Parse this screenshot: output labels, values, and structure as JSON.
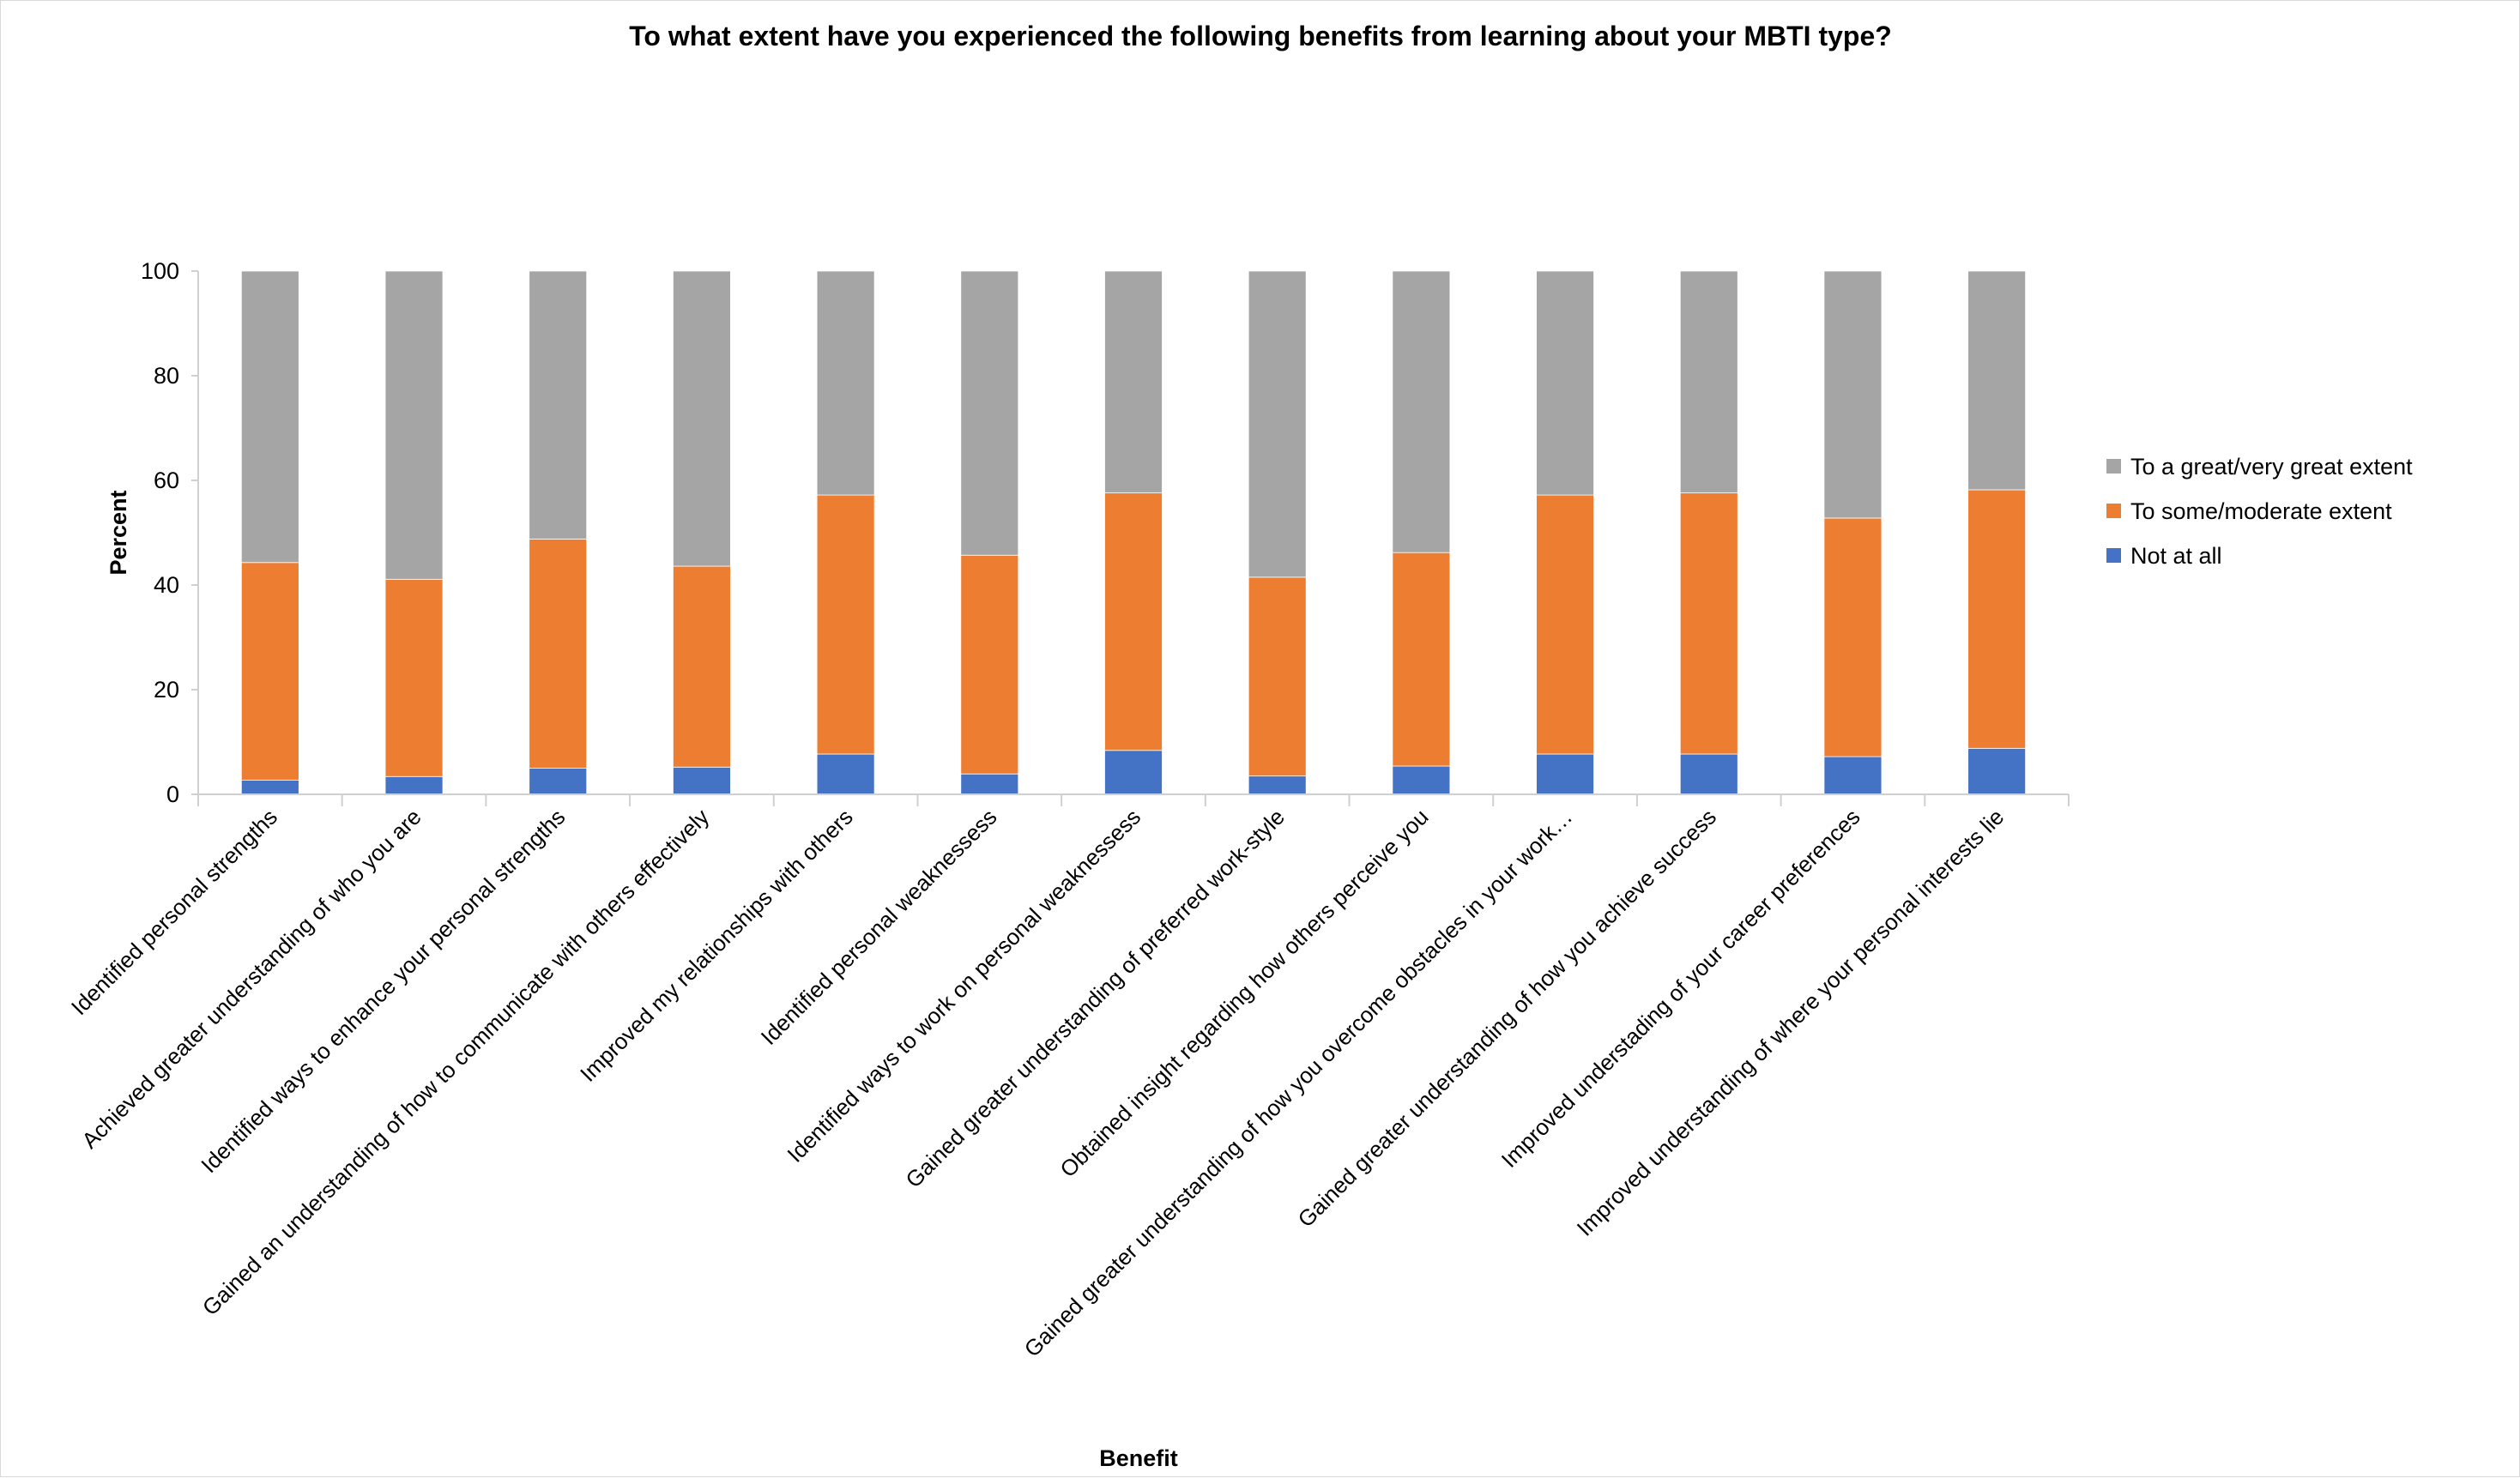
{
  "chart_data": {
    "type": "bar",
    "stacked": true,
    "title": "To what extent have you experienced the following benefits from learning about your MBTI type?",
    "xlabel": "Benefit",
    "ylabel": "Percent",
    "ylim": [
      0,
      100
    ],
    "yticks": [
      0,
      20,
      40,
      60,
      80,
      100
    ],
    "grid": false,
    "legend_position": "right",
    "categories": [
      "Identified personal strengths",
      "Achieved greater understanding of who you are",
      "Identified ways to enhance your personal strengths",
      "Gained an understanding of how to communicate with others effectively",
      "Improved my relationships with others",
      "Identified personal weaknessess",
      "Identified ways to work on personal weaknessess",
      "Gained greater understanding of preferred work-style",
      "Obtained insight regarding how others perceive you",
      "Gained greater understanding of how you overcome obstacles in your work…",
      "Gained greater understanding of how you achieve success",
      "Improved understading of your career preferences",
      "Improved understanding of where your personal interests lie"
    ],
    "series": [
      {
        "name": "Not at all",
        "color": "#4472C4",
        "values": [
          2.7,
          3.4,
          5.0,
          5.2,
          7.7,
          3.9,
          8.4,
          3.5,
          5.4,
          7.7,
          7.7,
          7.2,
          8.8
        ]
      },
      {
        "name": "To some/moderate extent",
        "color": "#ED7D31",
        "values": [
          41.6,
          37.7,
          43.8,
          38.4,
          49.5,
          41.8,
          49.2,
          38.0,
          40.8,
          49.5,
          49.9,
          45.6,
          49.4
        ]
      },
      {
        "name": "To a great/very great extent",
        "color": "#A5A5A5",
        "values": [
          55.7,
          58.9,
          51.2,
          56.4,
          42.8,
          54.3,
          42.4,
          58.5,
          53.8,
          42.8,
          42.4,
          47.2,
          41.8
        ]
      }
    ]
  }
}
